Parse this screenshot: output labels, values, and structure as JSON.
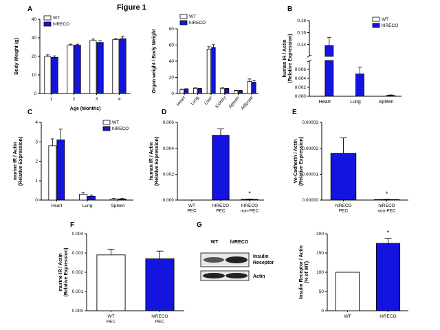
{
  "figure_title": "Figure 1",
  "colors": {
    "wt": "#ffffff",
    "hireco": "#1414e0",
    "edge": "#000000"
  },
  "chart_data": [
    {
      "id": "A1",
      "panel_letter": "A",
      "type": "bar",
      "xlabel": "Age (Months)",
      "ylabel": "Body Weight (g)",
      "categories": [
        "1",
        "2",
        "3",
        "4"
      ],
      "ylim": [
        0,
        40
      ],
      "yticks": [
        "0",
        "10",
        "20",
        "30",
        "40"
      ],
      "ytick_values": [
        0,
        10,
        20,
        30,
        40
      ],
      "legend": [
        "WT",
        "hIRECO"
      ],
      "series": [
        {
          "name": "WT",
          "color_key": "wt",
          "values": [
            20,
            26,
            28.5,
            29
          ],
          "errors": [
            0.8,
            0.6,
            0.8,
            0.8
          ]
        },
        {
          "name": "hIRECO",
          "color_key": "hireco",
          "values": [
            19.5,
            26,
            27.5,
            29.5
          ],
          "errors": [
            0.8,
            0.6,
            1.0,
            1.2
          ]
        }
      ]
    },
    {
      "id": "A2",
      "panel_letter": "",
      "type": "bar",
      "xlabel": "",
      "ylabel": "Organ weight / Body Weight",
      "categories": [
        "Heart",
        "Lung",
        "Liver",
        "Kidney",
        "Spleen",
        "Adipose"
      ],
      "ylim": [
        0,
        80
      ],
      "yticks": [
        "0",
        "20",
        "40",
        "60",
        "80"
      ],
      "ytick_values": [
        0,
        20,
        40,
        60,
        80
      ],
      "legend": [
        "WT",
        "hIRECO"
      ],
      "series": [
        {
          "name": "WT",
          "color_key": "wt",
          "values": [
            5,
            6.5,
            55,
            6.5,
            3.5,
            15
          ],
          "errors": [
            0.5,
            0.5,
            3,
            0.5,
            0.4,
            3
          ]
        },
        {
          "name": "hIRECO",
          "color_key": "hireco",
          "values": [
            5.5,
            6,
            57,
            6,
            3.5,
            14
          ],
          "errors": [
            0.5,
            0.5,
            3.5,
            0.5,
            0.4,
            2
          ]
        }
      ]
    },
    {
      "id": "B",
      "panel_letter": "B",
      "type": "bar",
      "broken_axis": true,
      "xlabel": "",
      "ylabel": "human IR / Actin\n(Relative Expression)",
      "categories": [
        "Heart",
        "Lung",
        "Spleen"
      ],
      "ylim_lower": [
        0,
        0.008
      ],
      "yticks_lower": [
        "0.000",
        "0.002",
        "0.004",
        "0.006"
      ],
      "ytick_values_lower": [
        0,
        0.002,
        0.004,
        0.006
      ],
      "ylim_upper": [
        0.12,
        0.18
      ],
      "yticks_upper": [
        "0.14",
        "0.16",
        "0.18"
      ],
      "ytick_values_upper": [
        0.14,
        0.16,
        0.18
      ],
      "legend": [
        "WT",
        "hIRECO"
      ],
      "series": [
        {
          "name": "WT",
          "color_key": "wt",
          "values": [
            0,
            0,
            0
          ],
          "errors": [
            0,
            0,
            0
          ]
        },
        {
          "name": "hIRECO",
          "color_key": "hireco",
          "values": [
            0.138,
            0.005,
            0.0002
          ],
          "errors": [
            0.014,
            0.0015,
            0.0001
          ]
        }
      ]
    },
    {
      "id": "C",
      "panel_letter": "C",
      "type": "bar",
      "xlabel": "",
      "ylabel": "murine IR / Actin\n(Relative Expression)",
      "categories": [
        "Heart",
        "Lung",
        "Spleen"
      ],
      "ylim": [
        0,
        4
      ],
      "yticks": [
        "0",
        "1",
        "2",
        "3",
        "4"
      ],
      "ytick_values": [
        0,
        1,
        2,
        3,
        4
      ],
      "legend": [
        "WT",
        "hIRECO"
      ],
      "series": [
        {
          "name": "WT",
          "color_key": "wt",
          "values": [
            2.8,
            0.3,
            0.05
          ],
          "errors": [
            0.35,
            0.1,
            0.03
          ]
        },
        {
          "name": "hIRECO",
          "color_key": "hireco",
          "values": [
            3.1,
            0.2,
            0.06
          ],
          "errors": [
            0.55,
            0.05,
            0.02
          ]
        }
      ]
    },
    {
      "id": "D",
      "panel_letter": "D",
      "type": "bar",
      "xlabel": "",
      "ylabel": "human IR / Actin\n(Relative Expression)",
      "categories": [
        "WT\nPEC",
        "hIRECO\nPEC",
        "hIRECO\nnon-PEC"
      ],
      "ylim": [
        0,
        0.006
      ],
      "yticks": [
        "0.000",
        "0.002",
        "0.004",
        "0.006"
      ],
      "ytick_values": [
        0,
        0.002,
        0.004,
        0.006
      ],
      "values": [
        0,
        0.005,
        5e-05
      ],
      "errors": [
        0,
        0.0005,
        3e-05
      ],
      "bar_color_keys": [
        "wt",
        "hireco",
        "hireco"
      ],
      "annotations": [
        {
          "text": "*",
          "category": 2
        }
      ]
    },
    {
      "id": "E",
      "panel_letter": "E",
      "type": "bar",
      "xlabel": "",
      "ylabel": "Ve-Cadherin / Actin\n(Relative Expression)",
      "categories": [
        "hIRECO\nPEC",
        "hIRECO\nnon-PEC"
      ],
      "ylim": [
        0,
        3e-05
      ],
      "yticks": [
        "0.00000",
        "0.00001",
        "0.00002",
        "0.00003"
      ],
      "ytick_values": [
        0,
        1e-05,
        2e-05,
        3e-05
      ],
      "values": [
        1.8e-05,
        2e-07
      ],
      "errors": [
        6e-06,
        1e-07
      ],
      "bar_color_keys": [
        "hireco",
        "hireco"
      ],
      "annotations": [
        {
          "text": "*",
          "category": 1
        }
      ]
    },
    {
      "id": "F",
      "panel_letter": "F",
      "type": "bar",
      "xlabel": "",
      "ylabel": "murine IR / Actin\n(Relative Expression)",
      "categories": [
        "WT\nPEC",
        "hIRECO\nPEC"
      ],
      "ylim": [
        0,
        0.004
      ],
      "yticks": [
        "0.000",
        "0.001",
        "0.002",
        "0.003",
        "0.004"
      ],
      "ytick_values": [
        0,
        0.001,
        0.002,
        0.003,
        0.004
      ],
      "values": [
        0.0029,
        0.0027
      ],
      "errors": [
        0.0003,
        0.0004
      ],
      "bar_color_keys": [
        "wt",
        "hireco"
      ]
    },
    {
      "id": "G",
      "panel_letter": "",
      "type": "bar",
      "xlabel": "",
      "ylabel": "Insulin Receptor / Actin\n(% of WT)",
      "categories": [
        "WT",
        "hIRECO"
      ],
      "ylim": [
        0,
        200
      ],
      "yticks": [
        "0",
        "50",
        "100",
        "150",
        "200"
      ],
      "ytick_values": [
        0,
        50,
        100,
        150,
        200
      ],
      "values": [
        100,
        175
      ],
      "errors": [
        0,
        13
      ],
      "bar_color_keys": [
        "wt",
        "hireco"
      ],
      "annotations": [
        {
          "text": "*",
          "category": 1
        }
      ]
    }
  ],
  "western_blot": {
    "panel_letter": "G",
    "lane_labels": [
      "WT",
      "hIRECO"
    ],
    "rows": [
      "Insulin\nReceptor",
      "Actin"
    ]
  }
}
